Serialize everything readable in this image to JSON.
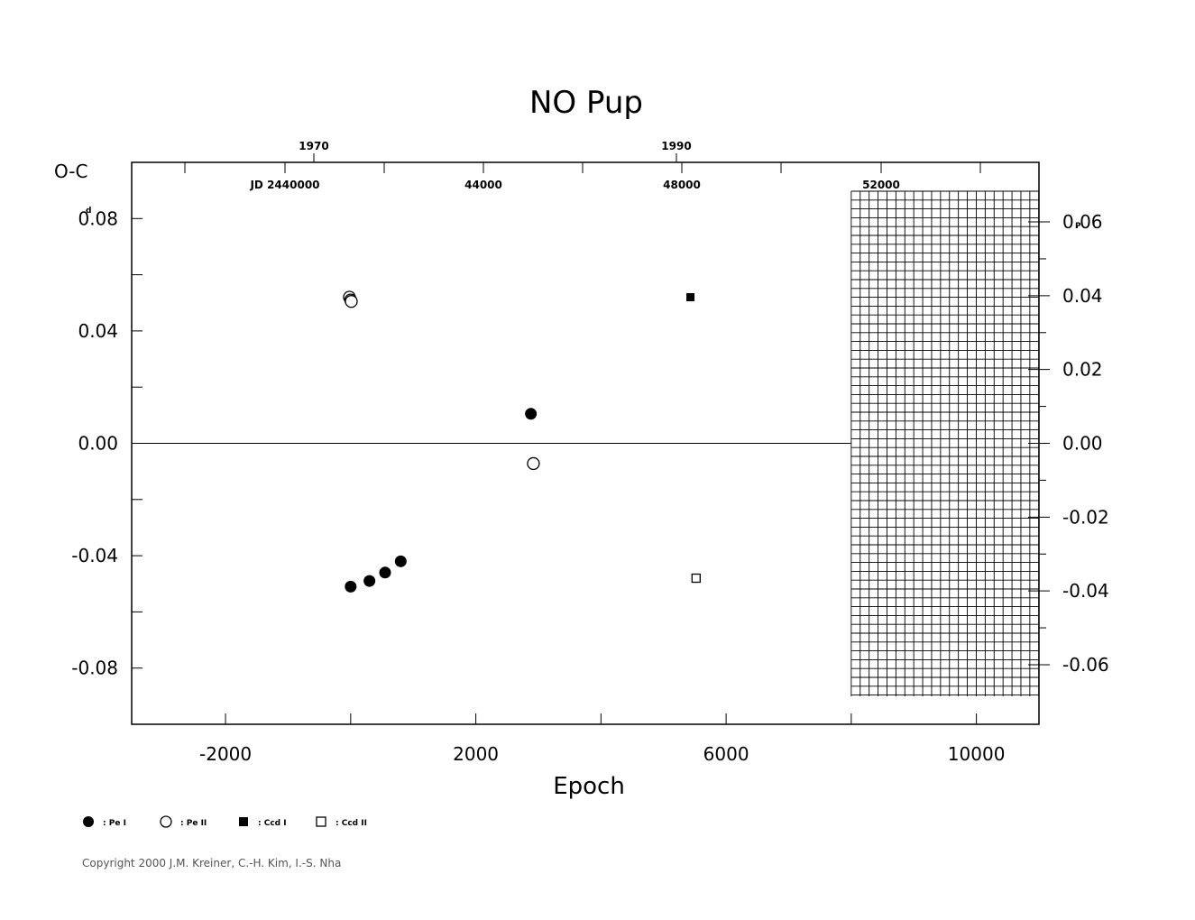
{
  "chart_data": {
    "type": "scatter",
    "title": "NO Pup",
    "xlabel": "Epoch",
    "ylabel": "O-C",
    "ylabel_unit": "d",
    "right_axis_unit": "P",
    "xlim": [
      -3500,
      11000
    ],
    "ylim": [
      -0.1,
      0.1
    ],
    "x_ticks": [
      "-2000",
      "2000",
      "6000",
      "10000"
    ],
    "y_ticks": [
      "0.08",
      "0.04",
      "0.00",
      "-0.04",
      "-0.08"
    ],
    "right_ticks": [
      "0.06",
      "0.04",
      "0.02",
      "0.00",
      "-0.02",
      "-0.04",
      "-0.06"
    ],
    "top_year_ticks": [
      "1970",
      "1990"
    ],
    "top_jd_ticks": [
      "JD 2440000",
      "44000",
      "48000",
      "52000"
    ],
    "hatched_region": {
      "x_from": 8000,
      "x_to": 11000
    },
    "series": [
      {
        "name": "Pe I",
        "marker": "filled-circle",
        "points": [
          [
            0,
            -0.051
          ],
          [
            300,
            -0.049
          ],
          [
            550,
            -0.046
          ],
          [
            800,
            -0.042
          ],
          [
            2880,
            0.0105
          ]
        ]
      },
      {
        "name": "Pe II",
        "marker": "open-circle",
        "points": [
          [
            -20,
            0.052
          ],
          [
            0,
            0.051
          ],
          [
            10,
            0.0505
          ],
          [
            2920,
            -0.0072
          ]
        ]
      },
      {
        "name": "Ccd I",
        "marker": "filled-square",
        "points": [
          [
            5430,
            0.052
          ]
        ]
      },
      {
        "name": "Ccd II",
        "marker": "open-square",
        "points": [
          [
            5520,
            -0.048
          ]
        ]
      }
    ],
    "legend": [
      {
        "symbol": "filled-circle",
        "label": ": Pe I"
      },
      {
        "symbol": "open-circle",
        "label": ": Pe II"
      },
      {
        "symbol": "filled-square",
        "label": ": Ccd I"
      },
      {
        "symbol": "open-square",
        "label": ": Ccd II"
      }
    ]
  },
  "copyright": "Copyright 2000 J.M. Kreiner, C.-H. Kim, I.-S. Nha"
}
